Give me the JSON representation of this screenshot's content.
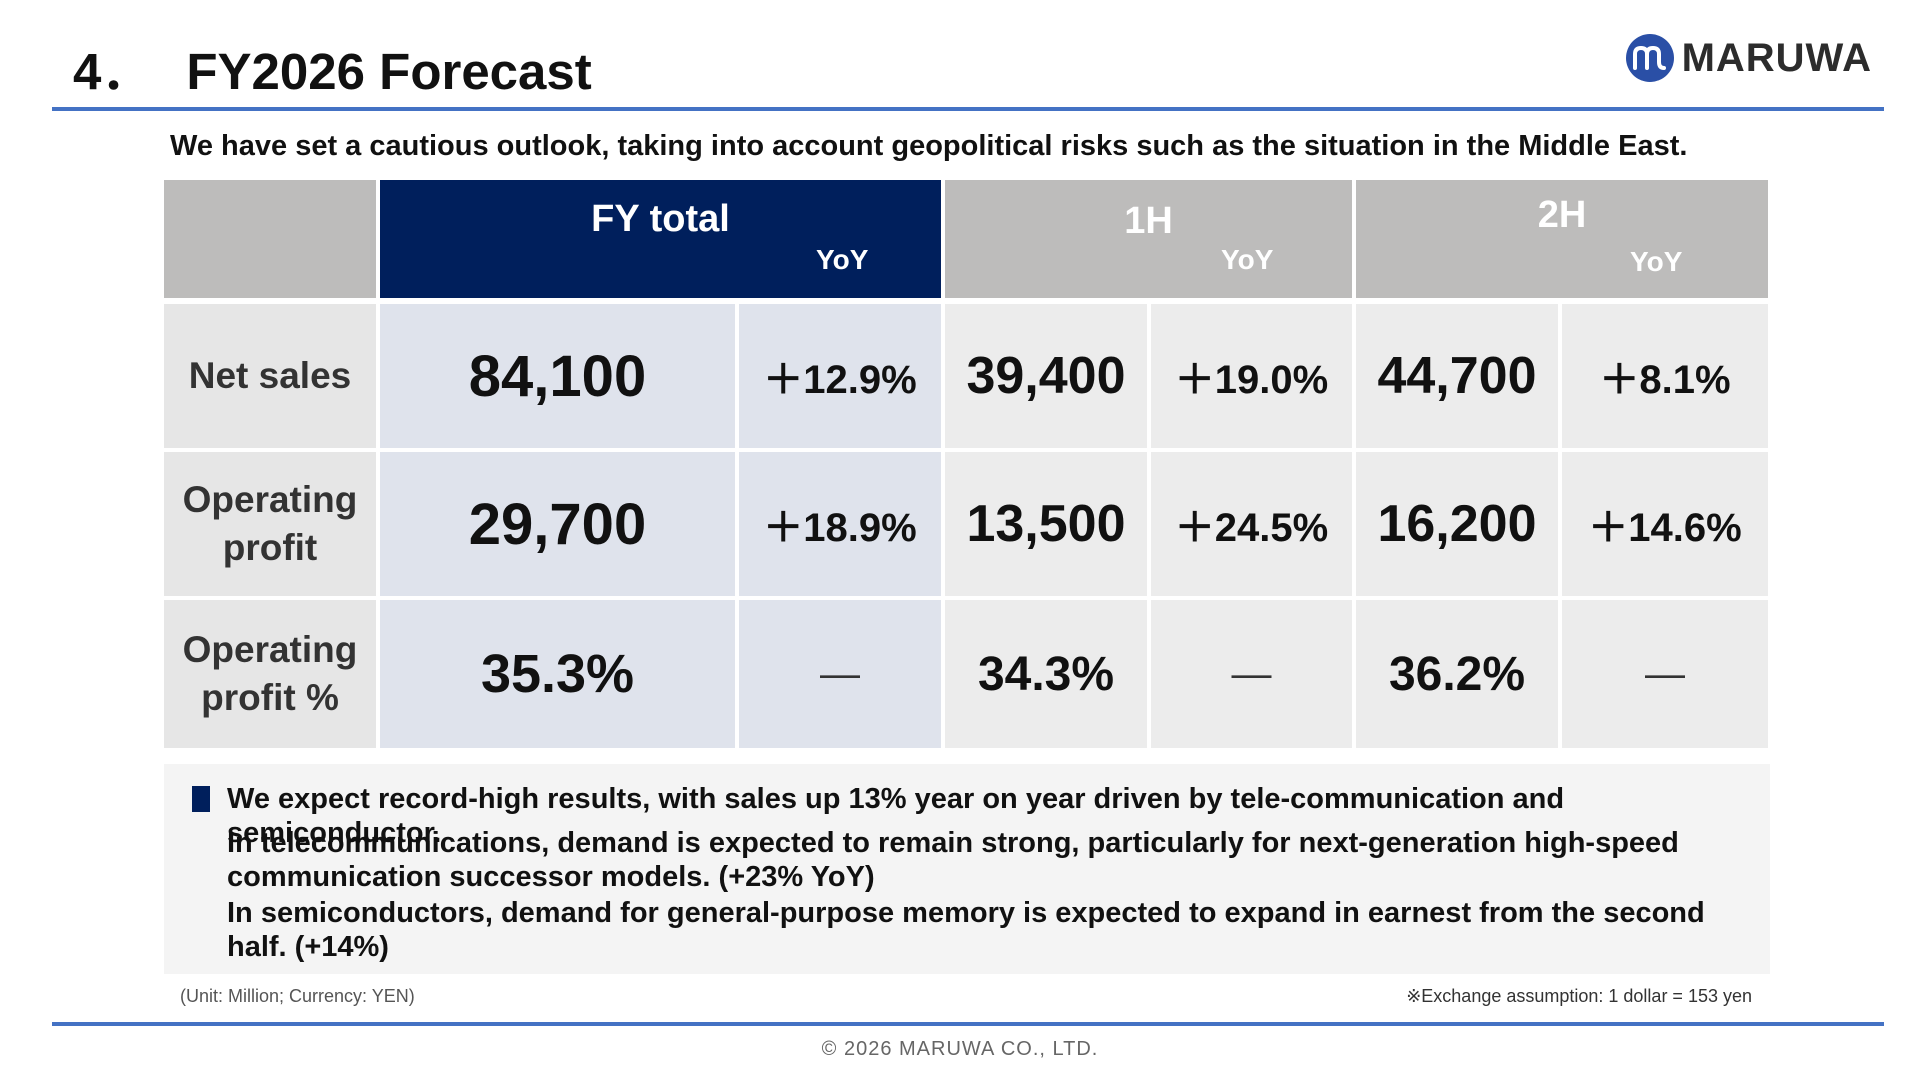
{
  "header": {
    "section_number": "4．",
    "title": "FY2026 Forecast",
    "logo_text": "MARUWA"
  },
  "subtitle": "We have set a cautious outlook, taking into account geopolitical risks such as the situation in the Middle East.",
  "table": {
    "columns": {
      "fy": "FY total",
      "h1": "1H",
      "h2": "2H",
      "yoy": "YoY"
    },
    "rows": [
      {
        "label_line1": "Net sales",
        "label_line2": "",
        "fy": "84,100",
        "fy_yoy": "＋12.9%",
        "h1": "39,400",
        "h1_yoy": "＋19.0%",
        "h2": "44,700",
        "h2_yoy": "＋8.1%"
      },
      {
        "label_line1": "Operating",
        "label_line2": "profit",
        "fy": "29,700",
        "fy_yoy": "＋18.9%",
        "h1": "13,500",
        "h1_yoy": "＋24.5%",
        "h2": "16,200",
        "h2_yoy": "＋14.6%"
      },
      {
        "label_line1": "Operating",
        "label_line2": "profit %",
        "fy": "35.3%",
        "fy_yoy": "—",
        "h1": "34.3%",
        "h1_yoy": "—",
        "h2": "36.2%",
        "h2_yoy": "—"
      }
    ]
  },
  "notes": {
    "headline": "We expect record-high results, with sales up 13% year on year driven by tele-communication and semiconductor.",
    "telecom": "In telecommunications, demand is expected to remain strong, particularly for next-generation high-speed communication successor models. (+23% YoY)",
    "semis": "In semiconductors, demand for general-purpose memory is expected to expand in earnest from the second half. (+14%)"
  },
  "footer": {
    "unit": "(Unit: Million; Currency: YEN)",
    "exchange": "※Exchange assumption: 1 dollar = 153 yen",
    "copyright": "© 2026 MARUWA CO., LTD."
  },
  "colors": {
    "accent_rule": "#4472c4",
    "navy": "#001f5c",
    "header_gray": "#bdbcbb",
    "fy_cell": "#dfe3ec",
    "half_cell": "#ececec"
  }
}
